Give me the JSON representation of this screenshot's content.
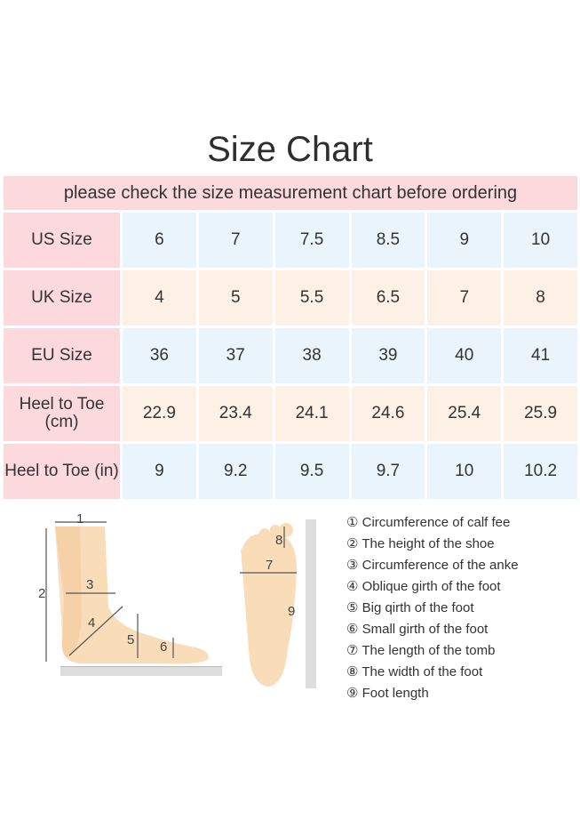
{
  "title": "Size Chart",
  "subtitle": "please check the size measurement chart before ordering",
  "rows": [
    {
      "label": "US Size",
      "values": [
        "6",
        "7",
        "7.5",
        "8.5",
        "9",
        "10"
      ],
      "color": "blue"
    },
    {
      "label": "UK Size",
      "values": [
        "4",
        "5",
        "5.5",
        "6.5",
        "7",
        "8"
      ],
      "color": "peach"
    },
    {
      "label": "EU Size",
      "values": [
        "36",
        "37",
        "38",
        "39",
        "40",
        "41"
      ],
      "color": "blue"
    },
    {
      "label": "Heel to Toe (cm)",
      "values": [
        "22.9",
        "23.4",
        "24.1",
        "24.6",
        "25.4",
        "25.9"
      ],
      "color": "peach"
    },
    {
      "label": "Heel to Toe (in)",
      "values": [
        "9",
        "9.2",
        "9.5",
        "9.7",
        "10",
        "10.2"
      ],
      "color": "blue"
    }
  ],
  "colors": {
    "label_bg": "#fbd9dd",
    "blue_bg": "#eaf4fd",
    "peach_bg": "#fdf0e4",
    "skin": "#f9dcb8"
  },
  "diagram_labels": [
    "1",
    "2",
    "3",
    "4",
    "5",
    "6",
    "7",
    "8",
    "9"
  ],
  "legend": [
    "① Circumference of calf fee",
    "② The height of the shoe",
    "③ Circumference of the anke",
    "④ Oblique girth of the foot",
    "⑤ Big qirth of the foot",
    "⑥ Small girth of the foot",
    "⑦ The length of the tomb",
    "⑧ The width of the foot",
    "⑨ Foot length"
  ]
}
